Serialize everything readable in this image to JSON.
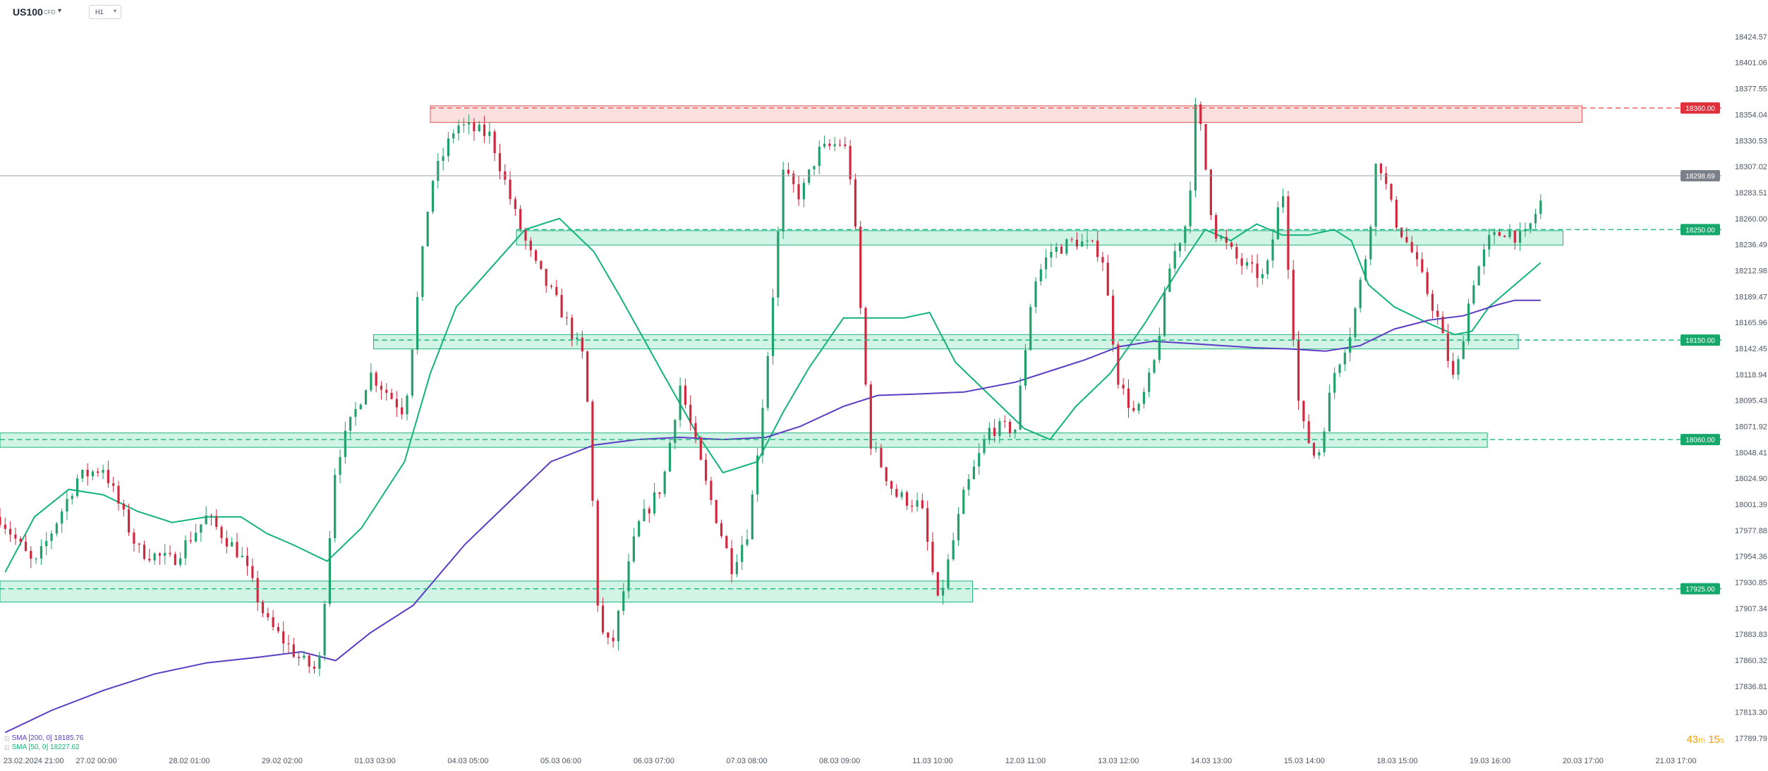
{
  "toolbar": {
    "symbol": "US100",
    "symbol_type": "CFD",
    "timeframe": "H1"
  },
  "countdown": {
    "minutes": "43",
    "m": "m",
    "seconds": "15",
    "s": "s"
  },
  "colors": {
    "bull": "#22a06b",
    "bear": "#d0283f",
    "support_zone_fill": "rgba(46,204,140,0.22)",
    "support_zone_stroke": "#1fb57a",
    "resistance_zone_fill": "rgba(239,83,80,0.18)",
    "resistance_zone_stroke": "#e05555",
    "sma50": "#14b37d",
    "sma200": "#5b3cc4",
    "price_line": "#9aa0a6"
  },
  "legend": [
    {
      "icon": "eye-icon",
      "text": "SMA [200, 0] 18185.76",
      "color": "#5b3cc4"
    },
    {
      "icon": "eye-icon",
      "text": "SMA [50, 0] 18227.62",
      "color": "#14b37d"
    }
  ],
  "chart_data": {
    "type": "candlestick",
    "y_axis_range": [
      17778,
      18436
    ],
    "y_tick_labels": [
      18424.57,
      18401.06,
      18377.55,
      18354.04,
      18330.53,
      18307.02,
      18283.51,
      18260.0,
      18236.49,
      18212.98,
      18189.47,
      18165.96,
      18142.45,
      18118.94,
      18095.43,
      18071.92,
      18048.41,
      18024.9,
      18001.39,
      17977.88,
      17954.36,
      17930.85,
      17907.34,
      17883.83,
      17860.32,
      17836.81,
      17813.3,
      17789.79
    ],
    "x_tick_labels": [
      "23.02.2024  21:00",
      "27.02  00:00",
      "28.02  01:00",
      "29.02  02:00",
      "01.03  03:00",
      "04.03  05:00",
      "05.03  06:00",
      "06.03  07:00",
      "07.03  08:00",
      "08.03  09:00",
      "11.03  10:00",
      "12.03  11:00",
      "13.03  12:00",
      "14.03  13:00",
      "15.03  14:00",
      "18.03  15:00",
      "19.03  16:00",
      "20.03  17:00",
      "21.03  17:00"
    ],
    "current_price": 18298.69,
    "levels": [
      {
        "price": 18360.0,
        "label": "18360.00",
        "kind": "resistance",
        "zone": [
          18347,
          18362
        ],
        "x_start": 0.25
      },
      {
        "price": 18250.0,
        "label": "18250.00",
        "kind": "support",
        "zone": [
          18236,
          18249
        ],
        "x_start": 0.3
      },
      {
        "price": 18150.0,
        "label": "18150.00",
        "kind": "support",
        "zone": [
          18142,
          18155
        ],
        "x_start": 0.217
      },
      {
        "price": 18060.0,
        "label": "18060.00",
        "kind": "support",
        "zone": [
          18053,
          18066
        ],
        "x_start": 0.0
      },
      {
        "price": 17925.0,
        "label": "17925.00",
        "kind": "support",
        "zone": [
          17913,
          17932
        ],
        "x_start": 0.0
      }
    ],
    "zone_x_end": [
      0.919,
      0.908,
      0.882,
      0.864,
      0.565
    ],
    "price_anchors": [
      [
        0.0,
        17990
      ],
      [
        0.02,
        17945
      ],
      [
        0.045,
        18025
      ],
      [
        0.06,
        18035
      ],
      [
        0.08,
        17960
      ],
      [
        0.1,
        17950
      ],
      [
        0.12,
        17990
      ],
      [
        0.14,
        17955
      ],
      [
        0.155,
        17895
      ],
      [
        0.175,
        17860
      ],
      [
        0.185,
        17850
      ],
      [
        0.195,
        18040
      ],
      [
        0.215,
        18120
      ],
      [
        0.235,
        18085
      ],
      [
        0.25,
        18290
      ],
      [
        0.265,
        18345
      ],
      [
        0.285,
        18335
      ],
      [
        0.3,
        18260
      ],
      [
        0.31,
        18220
      ],
      [
        0.325,
        18180
      ],
      [
        0.34,
        18130
      ],
      [
        0.348,
        17890
      ],
      [
        0.355,
        17870
      ],
      [
        0.37,
        17980
      ],
      [
        0.385,
        18020
      ],
      [
        0.395,
        18110
      ],
      [
        0.41,
        18020
      ],
      [
        0.425,
        17945
      ],
      [
        0.435,
        17980
      ],
      [
        0.445,
        18120
      ],
      [
        0.455,
        18300
      ],
      [
        0.465,
        18280
      ],
      [
        0.475,
        18320
      ],
      [
        0.49,
        18330
      ],
      [
        0.495,
        18290
      ],
      [
        0.505,
        18060
      ],
      [
        0.52,
        18010
      ],
      [
        0.535,
        18000
      ],
      [
        0.545,
        17910
      ],
      [
        0.56,
        18010
      ],
      [
        0.575,
        18070
      ],
      [
        0.59,
        18070
      ],
      [
        0.6,
        18200
      ],
      [
        0.61,
        18230
      ],
      [
        0.625,
        18240
      ],
      [
        0.64,
        18230
      ],
      [
        0.65,
        18110
      ],
      [
        0.66,
        18080
      ],
      [
        0.67,
        18125
      ],
      [
        0.68,
        18220
      ],
      [
        0.69,
        18260
      ],
      [
        0.695,
        18370
      ],
      [
        0.705,
        18250
      ],
      [
        0.72,
        18220
      ],
      [
        0.735,
        18205
      ],
      [
        0.745,
        18290
      ],
      [
        0.755,
        18080
      ],
      [
        0.765,
        18040
      ],
      [
        0.775,
        18120
      ],
      [
        0.785,
        18160
      ],
      [
        0.795,
        18240
      ],
      [
        0.8,
        18320
      ],
      [
        0.81,
        18260
      ],
      [
        0.82,
        18230
      ],
      [
        0.835,
        18170
      ],
      [
        0.845,
        18110
      ],
      [
        0.855,
        18200
      ],
      [
        0.865,
        18240
      ],
      [
        0.875,
        18250
      ],
      [
        0.885,
        18240
      ],
      [
        0.895,
        18275
      ]
    ],
    "sma50_points": [
      [
        0.003,
        17940
      ],
      [
        0.02,
        17990
      ],
      [
        0.04,
        18015
      ],
      [
        0.06,
        18010
      ],
      [
        0.08,
        17995
      ],
      [
        0.1,
        17985
      ],
      [
        0.12,
        17990
      ],
      [
        0.14,
        17990
      ],
      [
        0.155,
        17975
      ],
      [
        0.17,
        17965
      ],
      [
        0.19,
        17950
      ],
      [
        0.21,
        17980
      ],
      [
        0.235,
        18040
      ],
      [
        0.25,
        18120
      ],
      [
        0.265,
        18180
      ],
      [
        0.285,
        18215
      ],
      [
        0.305,
        18250
      ],
      [
        0.325,
        18260
      ],
      [
        0.345,
        18230
      ],
      [
        0.36,
        18190
      ],
      [
        0.385,
        18120
      ],
      [
        0.405,
        18065
      ],
      [
        0.42,
        18030
      ],
      [
        0.44,
        18040
      ],
      [
        0.455,
        18085
      ],
      [
        0.47,
        18125
      ],
      [
        0.49,
        18170
      ],
      [
        0.51,
        18170
      ],
      [
        0.525,
        18170
      ],
      [
        0.54,
        18175
      ],
      [
        0.555,
        18130
      ],
      [
        0.575,
        18100
      ],
      [
        0.595,
        18070
      ],
      [
        0.61,
        18060
      ],
      [
        0.625,
        18090
      ],
      [
        0.645,
        18120
      ],
      [
        0.665,
        18165
      ],
      [
        0.685,
        18215
      ],
      [
        0.7,
        18250
      ],
      [
        0.715,
        18240
      ],
      [
        0.73,
        18255
      ],
      [
        0.745,
        18245
      ],
      [
        0.76,
        18245
      ],
      [
        0.775,
        18250
      ],
      [
        0.785,
        18240
      ],
      [
        0.795,
        18200
      ],
      [
        0.81,
        18180
      ],
      [
        0.83,
        18165
      ],
      [
        0.845,
        18155
      ],
      [
        0.855,
        18158
      ],
      [
        0.865,
        18180
      ],
      [
        0.88,
        18200
      ],
      [
        0.895,
        18220
      ]
    ],
    "sma200_points": [
      [
        0.003,
        17795
      ],
      [
        0.03,
        17815
      ],
      [
        0.06,
        17833
      ],
      [
        0.09,
        17848
      ],
      [
        0.12,
        17858
      ],
      [
        0.15,
        17863
      ],
      [
        0.175,
        17868
      ],
      [
        0.195,
        17860
      ],
      [
        0.215,
        17885
      ],
      [
        0.24,
        17910
      ],
      [
        0.27,
        17965
      ],
      [
        0.3,
        18010
      ],
      [
        0.32,
        18040
      ],
      [
        0.345,
        18055
      ],
      [
        0.37,
        18060
      ],
      [
        0.395,
        18062
      ],
      [
        0.42,
        18060
      ],
      [
        0.445,
        18062
      ],
      [
        0.465,
        18072
      ],
      [
        0.49,
        18090
      ],
      [
        0.51,
        18100
      ],
      [
        0.53,
        18101
      ],
      [
        0.56,
        18103
      ],
      [
        0.59,
        18112
      ],
      [
        0.61,
        18122
      ],
      [
        0.63,
        18132
      ],
      [
        0.65,
        18144
      ],
      [
        0.67,
        18149
      ],
      [
        0.69,
        18147
      ],
      [
        0.71,
        18145
      ],
      [
        0.73,
        18143
      ],
      [
        0.75,
        18142
      ],
      [
        0.77,
        18140
      ],
      [
        0.79,
        18145
      ],
      [
        0.81,
        18160
      ],
      [
        0.83,
        18168
      ],
      [
        0.85,
        18172
      ],
      [
        0.87,
        18182
      ],
      [
        0.88,
        18186
      ],
      [
        0.895,
        18186
      ]
    ]
  }
}
